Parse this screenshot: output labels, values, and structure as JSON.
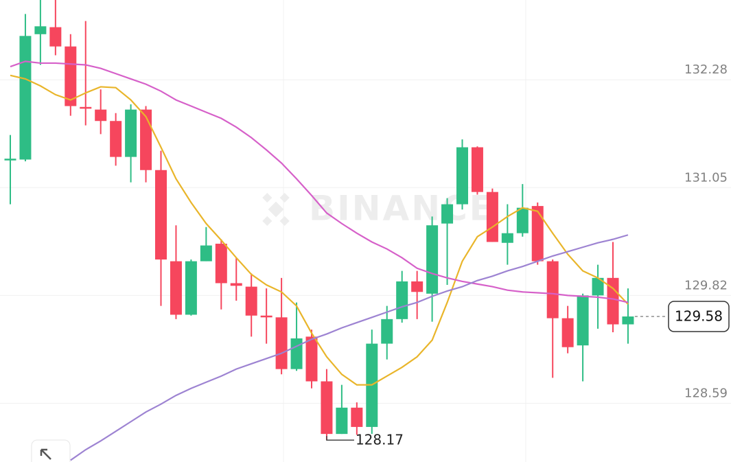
{
  "chart_data": {
    "type": "candlestick",
    "watermark": "BINANCE",
    "ylim": [
      127.92,
      133.19
    ],
    "yticks": [
      132.28,
      131.05,
      129.82,
      128.59
    ],
    "grid": true,
    "up_color": "#2ebd85",
    "down_color": "#f6465d",
    "open": [
      131.36,
      131.37,
      132.8,
      132.88,
      132.66,
      131.97,
      131.94,
      131.81,
      131.4,
      131.94,
      131.25,
      130.21,
      129.6,
      130.21,
      130.41,
      129.96,
      129.92,
      129.59,
      129.57,
      128.98,
      129.35,
      128.84,
      128.24,
      128.54,
      128.32,
      129.27,
      129.55,
      129.98,
      129.84,
      130.64,
      130.86,
      131.51,
      131.0,
      130.42,
      130.53,
      130.84,
      130.21,
      129.56,
      129.25,
      129.82,
      130.02,
      129.49
    ],
    "high": [
      131.65,
      133.03,
      133.19,
      133.19,
      132.8,
      132.95,
      132.17,
      131.9,
      132.0,
      131.98,
      131.47,
      130.62,
      130.23,
      130.6,
      130.46,
      130.25,
      130.07,
      129.9,
      130.02,
      129.74,
      129.43,
      128.98,
      128.8,
      128.6,
      129.43,
      129.7,
      130.1,
      130.1,
      130.72,
      130.93,
      131.6,
      131.52,
      131.04,
      130.86,
      131.09,
      130.88,
      130.23,
      129.7,
      129.84,
      130.17,
      130.43,
      129.9
    ],
    "low": [
      130.86,
      131.35,
      132.45,
      132.56,
      131.87,
      131.76,
      131.66,
      131.3,
      131.11,
      131.11,
      129.7,
      129.55,
      129.59,
      130.21,
      129.66,
      129.76,
      129.35,
      129.27,
      128.92,
      128.96,
      128.76,
      128.17,
      128.24,
      128.23,
      128.24,
      129.09,
      129.51,
      129.55,
      129.52,
      129.94,
      130.8,
      130.97,
      130.43,
      130.17,
      130.49,
      130.17,
      128.88,
      129.16,
      128.84,
      129.44,
      129.4,
      129.27
    ],
    "close": [
      131.38,
      132.78,
      132.89,
      132.66,
      131.98,
      131.95,
      131.81,
      131.4,
      131.94,
      131.25,
      130.23,
      129.6,
      130.21,
      130.39,
      129.96,
      129.93,
      129.59,
      129.57,
      128.98,
      129.33,
      128.84,
      128.24,
      128.54,
      128.32,
      129.27,
      129.55,
      129.98,
      129.86,
      130.62,
      130.86,
      131.51,
      131.0,
      130.43,
      130.53,
      130.82,
      130.21,
      129.56,
      129.23,
      129.82,
      130.02,
      129.49,
      129.58
    ],
    "series": [
      {
        "color": "#e9b52a",
        "values": [
          132.33,
          132.29,
          132.21,
          132.11,
          132.05,
          132.13,
          132.2,
          132.19,
          132.05,
          131.86,
          131.51,
          131.15,
          130.88,
          130.64,
          130.45,
          130.25,
          130.06,
          129.94,
          129.86,
          129.7,
          129.39,
          129.12,
          128.92,
          128.8,
          128.8,
          128.9,
          129.0,
          129.12,
          129.31,
          129.74,
          130.21,
          130.49,
          130.6,
          130.72,
          130.82,
          130.78,
          130.53,
          130.29,
          130.1,
          130.02,
          129.9,
          129.72
        ]
      },
      {
        "color": "#d660c9",
        "values": [
          132.43,
          132.49,
          132.47,
          132.47,
          132.46,
          132.45,
          132.41,
          132.35,
          132.29,
          132.23,
          132.15,
          132.05,
          131.98,
          131.91,
          131.84,
          131.74,
          131.62,
          131.48,
          131.33,
          131.15,
          130.96,
          130.76,
          130.64,
          130.53,
          130.43,
          130.35,
          130.25,
          130.13,
          130.07,
          130.02,
          129.98,
          129.95,
          129.92,
          129.88,
          129.86,
          129.85,
          129.84,
          129.82,
          129.81,
          129.8,
          129.78,
          129.74
        ]
      },
      {
        "color": "#9d83d2",
        "values": [
          null,
          null,
          null,
          null,
          127.94,
          128.06,
          128.16,
          128.27,
          128.38,
          128.49,
          128.58,
          128.68,
          128.76,
          128.83,
          128.9,
          128.98,
          129.04,
          129.1,
          129.16,
          129.24,
          129.32,
          129.38,
          129.45,
          129.51,
          129.57,
          129.63,
          129.69,
          129.74,
          129.81,
          129.87,
          129.92,
          129.99,
          130.04,
          130.1,
          130.15,
          130.21,
          130.27,
          130.32,
          130.37,
          130.42,
          130.46,
          130.51
        ]
      }
    ],
    "current_price": 129.58,
    "low_marker": 128.17
  }
}
